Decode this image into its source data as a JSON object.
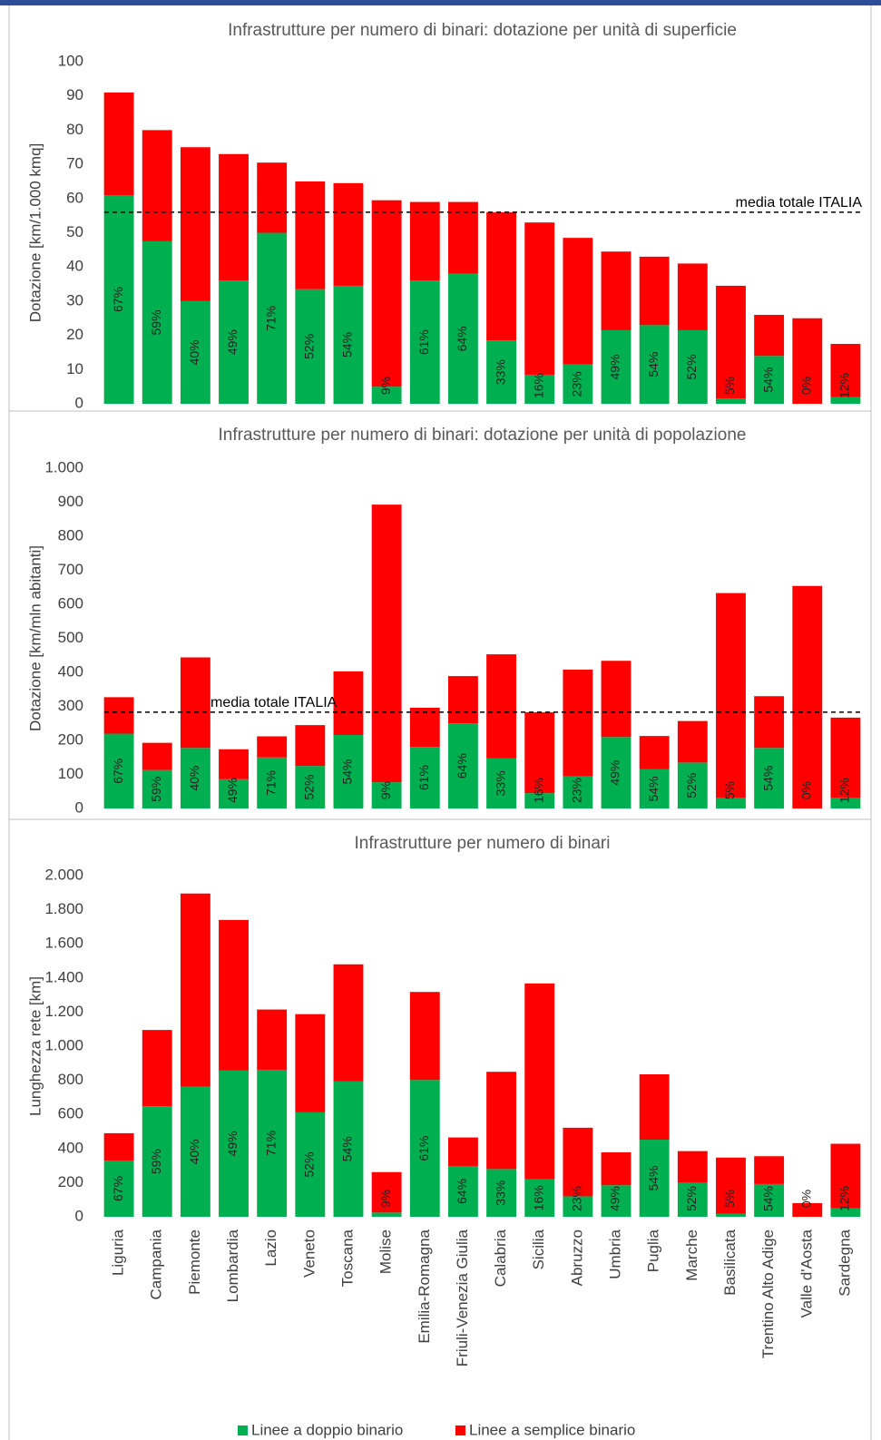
{
  "chart_data": [
    {
      "type": "bar",
      "stacked": true,
      "title": "Infrastrutture per numero di binari: dotazione per unità di superficie",
      "y_label": "Dotazione [km/1.000 kmq]",
      "ylim": [
        0,
        100
      ],
      "yticks": [
        0,
        10,
        20,
        30,
        40,
        50,
        60,
        70,
        80,
        90,
        100
      ],
      "grid": false,
      "series": [
        {
          "color": "#00b050",
          "values": [
            61,
            47.5,
            30,
            36,
            50,
            33.5,
            34.5,
            5,
            36,
            38,
            18.5,
            8.5,
            11.5,
            21.5,
            23,
            21.5,
            1.5,
            14,
            0,
            2
          ]
        },
        {
          "color": "#ff0000",
          "values": [
            30,
            32.5,
            45,
            37,
            20.5,
            31.5,
            30,
            54.5,
            23,
            21,
            37.5,
            44.5,
            37,
            23,
            20,
            19.5,
            33,
            12,
            25,
            15.5
          ]
        }
      ],
      "share_labels": [
        "67%",
        "59%",
        "40%",
        "49%",
        "71%",
        "52%",
        "54%",
        "9%",
        "61%",
        "64%",
        "33%",
        "16%",
        "23%",
        "49%",
        "54%",
        "52%",
        "5%",
        "54%",
        "0%",
        "12%"
      ],
      "reference_line": {
        "value": 56,
        "label": "media totale ITALIA"
      }
    },
    {
      "type": "bar",
      "stacked": true,
      "title": "Infrastrutture per numero di binari: dotazione per unità di popolazione",
      "y_label": "Dotazione [km/mln abitanti]",
      "ylim": [
        0,
        1000
      ],
      "yticks": [
        0,
        100,
        200,
        300,
        400,
        500,
        600,
        700,
        800,
        900,
        {
          "value": 1000,
          "label": "1.000"
        }
      ],
      "grid": false,
      "series": [
        {
          "color": "#00b050",
          "values": [
            220,
            113,
            178,
            86,
            150,
            125,
            216,
            77,
            181,
            250,
            148,
            45,
            94,
            210,
            115,
            135,
            31,
            178,
            0,
            31
          ]
        },
        {
          "color": "#ff0000",
          "values": [
            107,
            80,
            266,
            88,
            62,
            120,
            187,
            816,
            115,
            139,
            305,
            238,
            314,
            224,
            98,
            122,
            602,
            152,
            654,
            236
          ]
        }
      ],
      "share_labels": [
        "67%",
        "59%",
        "40%",
        "49%",
        "71%",
        "52%",
        "54%",
        "9%",
        "61%",
        "64%",
        "33%",
        "16%",
        "23%",
        "49%",
        "54%",
        "52%",
        "5%",
        "54%",
        "0%",
        "12%"
      ],
      "reference_line": {
        "value": 283,
        "label": "media totale ITALIA"
      }
    },
    {
      "type": "bar",
      "stacked": true,
      "title": "Infrastrutture per numero di binari",
      "y_label": "Lunghezza rete [km]",
      "categories": [
        "Liguria",
        "Campania",
        "Piemonte",
        "Lombardia",
        "Lazio",
        "Veneto",
        "Toscana",
        "Molise",
        "Emilia-Romagna",
        "Friuli-Venezia Giulia",
        "Calabria",
        "Sicilia",
        "Abruzzo",
        "Umbria",
        "Puglia",
        "Marche",
        "Basilicata",
        "Trentino Alto Adige",
        "Valle d'Aosta",
        "Sardegna"
      ],
      "ylim": [
        0,
        2000
      ],
      "yticks": [
        0,
        200,
        400,
        600,
        800,
        {
          "value": 1000,
          "label": "1.000"
        },
        {
          "value": 1200,
          "label": "1.200"
        },
        {
          "value": 1400,
          "label": "1.400"
        },
        {
          "value": 1600,
          "label": "1.600"
        },
        {
          "value": 1800,
          "label": "1.800"
        },
        {
          "value": 2000,
          "label": "2.000"
        }
      ],
      "grid": false,
      "series": [
        {
          "name": "Linee a doppio binario",
          "color": "#00b050",
          "values": [
            330,
            648,
            762,
            857,
            862,
            612,
            795,
            25,
            802,
            298,
            280,
            220,
            120,
            185,
            452,
            200,
            17,
            192,
            0,
            50
          ]
        },
        {
          "name": "Linee a semplice binario",
          "color": "#ff0000",
          "values": [
            160,
            447,
            1133,
            883,
            353,
            576,
            685,
            237,
            516,
            167,
            570,
            1148,
            402,
            193,
            383,
            185,
            330,
            163,
            80,
            378
          ]
        }
      ],
      "share_labels": [
        "67%",
        "59%",
        "40%",
        "49%",
        "71%",
        "52%",
        "54%",
        "9%",
        "61%",
        "64%",
        "33%",
        "16%",
        "23%",
        "49%",
        "54%",
        "52%",
        "5%",
        "54%",
        "0%",
        "12%"
      ]
    }
  ]
}
